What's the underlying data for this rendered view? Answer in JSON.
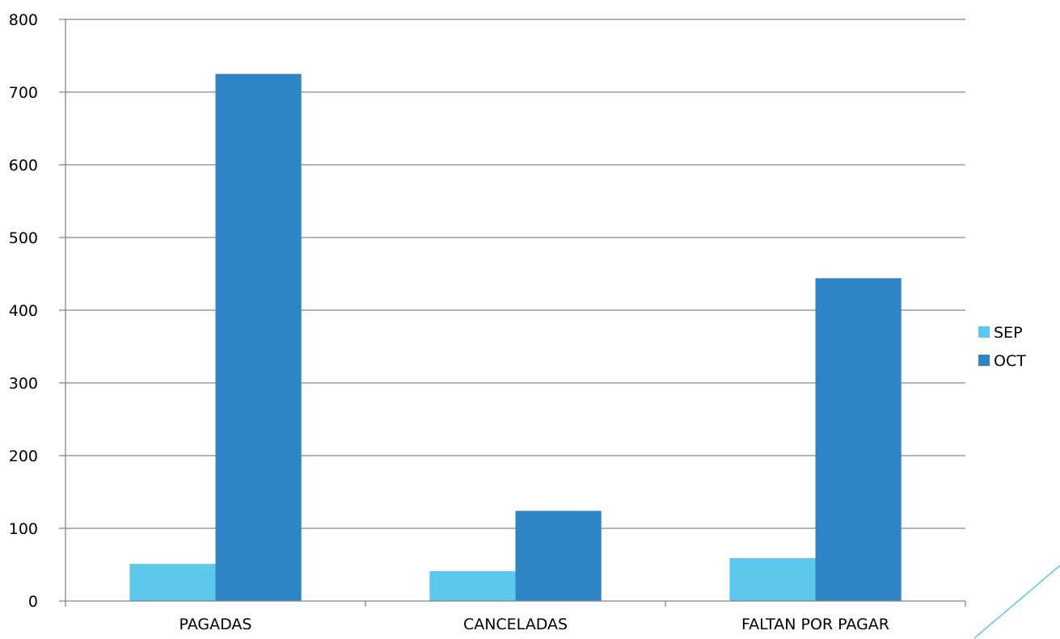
{
  "chart_data": {
    "type": "bar",
    "title": "",
    "xlabel": "",
    "ylabel": "",
    "categories": [
      "PAGADAS",
      "CANCELADAS",
      "FALTAN POR PAGAR"
    ],
    "series": [
      {
        "name": "SEP",
        "values": [
          51,
          41,
          59
        ],
        "color": "#5bc8ec"
      },
      {
        "name": "OCT",
        "values": [
          725,
          124,
          444
        ],
        "color": "#2e84c4"
      }
    ],
    "ylim": [
      0,
      800
    ],
    "yticks": [
      0,
      100,
      200,
      300,
      400,
      500,
      600,
      700,
      800
    ],
    "grid": true,
    "legend": "right"
  },
  "decoration": {
    "accent_line_color": "#5bc8ec"
  }
}
